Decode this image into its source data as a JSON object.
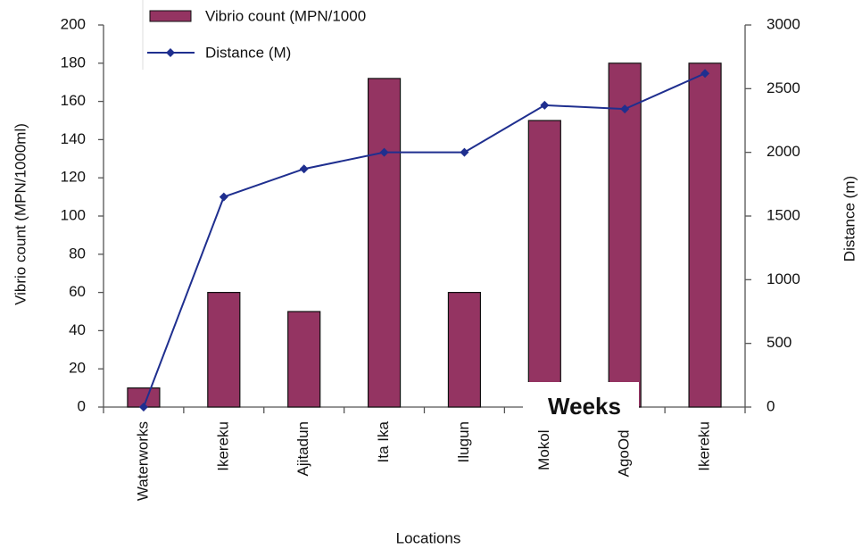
{
  "chart_data": {
    "type": "bar",
    "categories": [
      "Waterworks",
      "Ikereku",
      "Ajitadun",
      "Ita Ika",
      "Ilugun",
      "Mokola",
      "AgoOdo",
      "Ikereku"
    ],
    "series": [
      {
        "name": "Vibrio count (MPN/1000",
        "type": "bar",
        "color": "#943462",
        "values": [
          10,
          60,
          50,
          172,
          60,
          150,
          180,
          180
        ]
      },
      {
        "name": "Distance (M)",
        "type": "line",
        "axis": "y2",
        "color": "#1f2f8f",
        "values": [
          0,
          1650,
          1870,
          2000,
          2000,
          2370,
          2340,
          2620
        ]
      }
    ],
    "ylim": [
      0,
      200
    ],
    "yticks": [
      0,
      20,
      40,
      60,
      80,
      100,
      120,
      140,
      160,
      180,
      200
    ],
    "y2lim": [
      0,
      3000
    ],
    "y2ticks": [
      0,
      500,
      1000,
      1500,
      2000,
      2500,
      3000
    ],
    "ylabel": "Vibrio count (MPN/1000ml)",
    "y2label": "Distance (m)",
    "xlabel": "Locations",
    "annotation": "Weeks",
    "grid": false
  }
}
